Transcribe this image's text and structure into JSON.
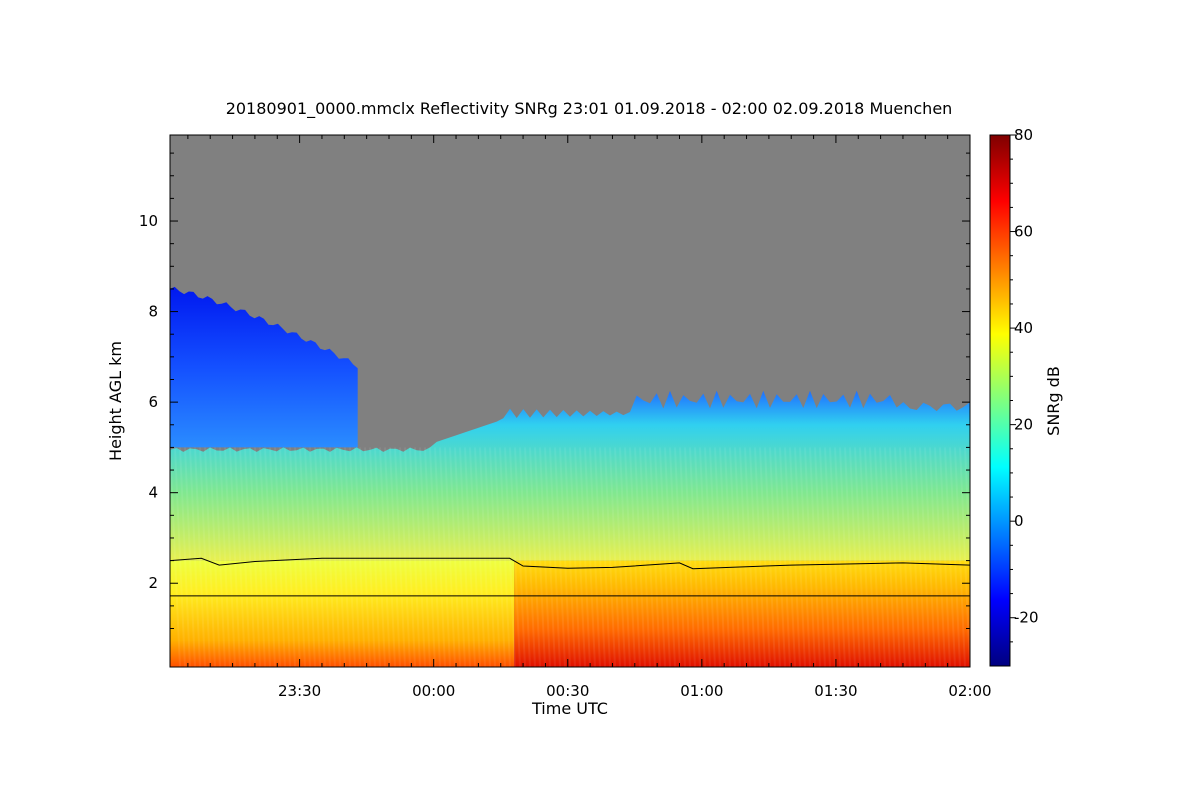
{
  "chart_data": {
    "type": "heatmap",
    "title": "20180901_0000.mmclx Reflectivity SNRg   23:01 01.09.2018 - 02:00 02.09.2018 Muenchen",
    "xlabel": "Time UTC",
    "ylabel": "Height AGL km",
    "x_start": "23:01",
    "x_end": "02:00",
    "x_ticks": [
      {
        "label": "23:30",
        "minute": 30
      },
      {
        "label": "00:00",
        "minute": 60
      },
      {
        "label": "00:30",
        "minute": 90
      },
      {
        "label": "01:00",
        "minute": 120
      },
      {
        "label": "01:30",
        "minute": 150
      },
      {
        "label": "02:00",
        "minute": 180
      }
    ],
    "xlim_minutes": [
      1,
      180
    ],
    "ylim": [
      0.15,
      11.9
    ],
    "y_ticks": [
      2,
      4,
      6,
      8,
      10
    ],
    "colorbar": {
      "label": "SNRg dB",
      "range": [
        -30,
        80
      ],
      "ticks": [
        -20,
        0,
        20,
        40,
        60,
        80
      ],
      "colors": [
        "#00007f",
        "#0000ff",
        "#007fff",
        "#00ffff",
        "#7fff7f",
        "#ffff00",
        "#ff7f00",
        "#ff0000",
        "#7f0000"
      ]
    },
    "no_signal_color": "#808080",
    "layers": [
      {
        "name": "upper-cloud",
        "from_minute": 1,
        "to_minute": 43,
        "bottom_km": 5.0,
        "top_km": 8.5,
        "snr_db": -15
      },
      {
        "name": "mid-cloud",
        "from_minute": 1,
        "to_minute": 180,
        "bottom_km": 2.5,
        "top_km": 5.0,
        "snr_db": 15
      },
      {
        "name": "rain-early",
        "from_minute": 1,
        "to_minute": 78,
        "bottom_km": 0.15,
        "top_km": 2.5,
        "snr_db": 40
      },
      {
        "name": "rain-late",
        "from_minute": 78,
        "to_minute": 180,
        "bottom_km": 0.15,
        "top_km": 2.5,
        "snr_db": 50
      }
    ],
    "melting_layer_km": [
      {
        "minute": 1,
        "km": 2.5
      },
      {
        "minute": 8,
        "km": 2.55
      },
      {
        "minute": 12,
        "km": 2.4
      },
      {
        "minute": 20,
        "km": 2.48
      },
      {
        "minute": 35,
        "km": 2.55
      },
      {
        "minute": 60,
        "km": 2.55
      },
      {
        "minute": 77,
        "km": 2.55
      },
      {
        "minute": 80,
        "km": 2.38
      },
      {
        "minute": 90,
        "km": 2.33
      },
      {
        "minute": 100,
        "km": 2.35
      },
      {
        "minute": 115,
        "km": 2.45
      },
      {
        "minute": 118,
        "km": 2.32
      },
      {
        "minute": 140,
        "km": 2.4
      },
      {
        "minute": 165,
        "km": 2.45
      },
      {
        "minute": 180,
        "km": 2.4
      }
    ],
    "reference_height_km": 1.72
  }
}
